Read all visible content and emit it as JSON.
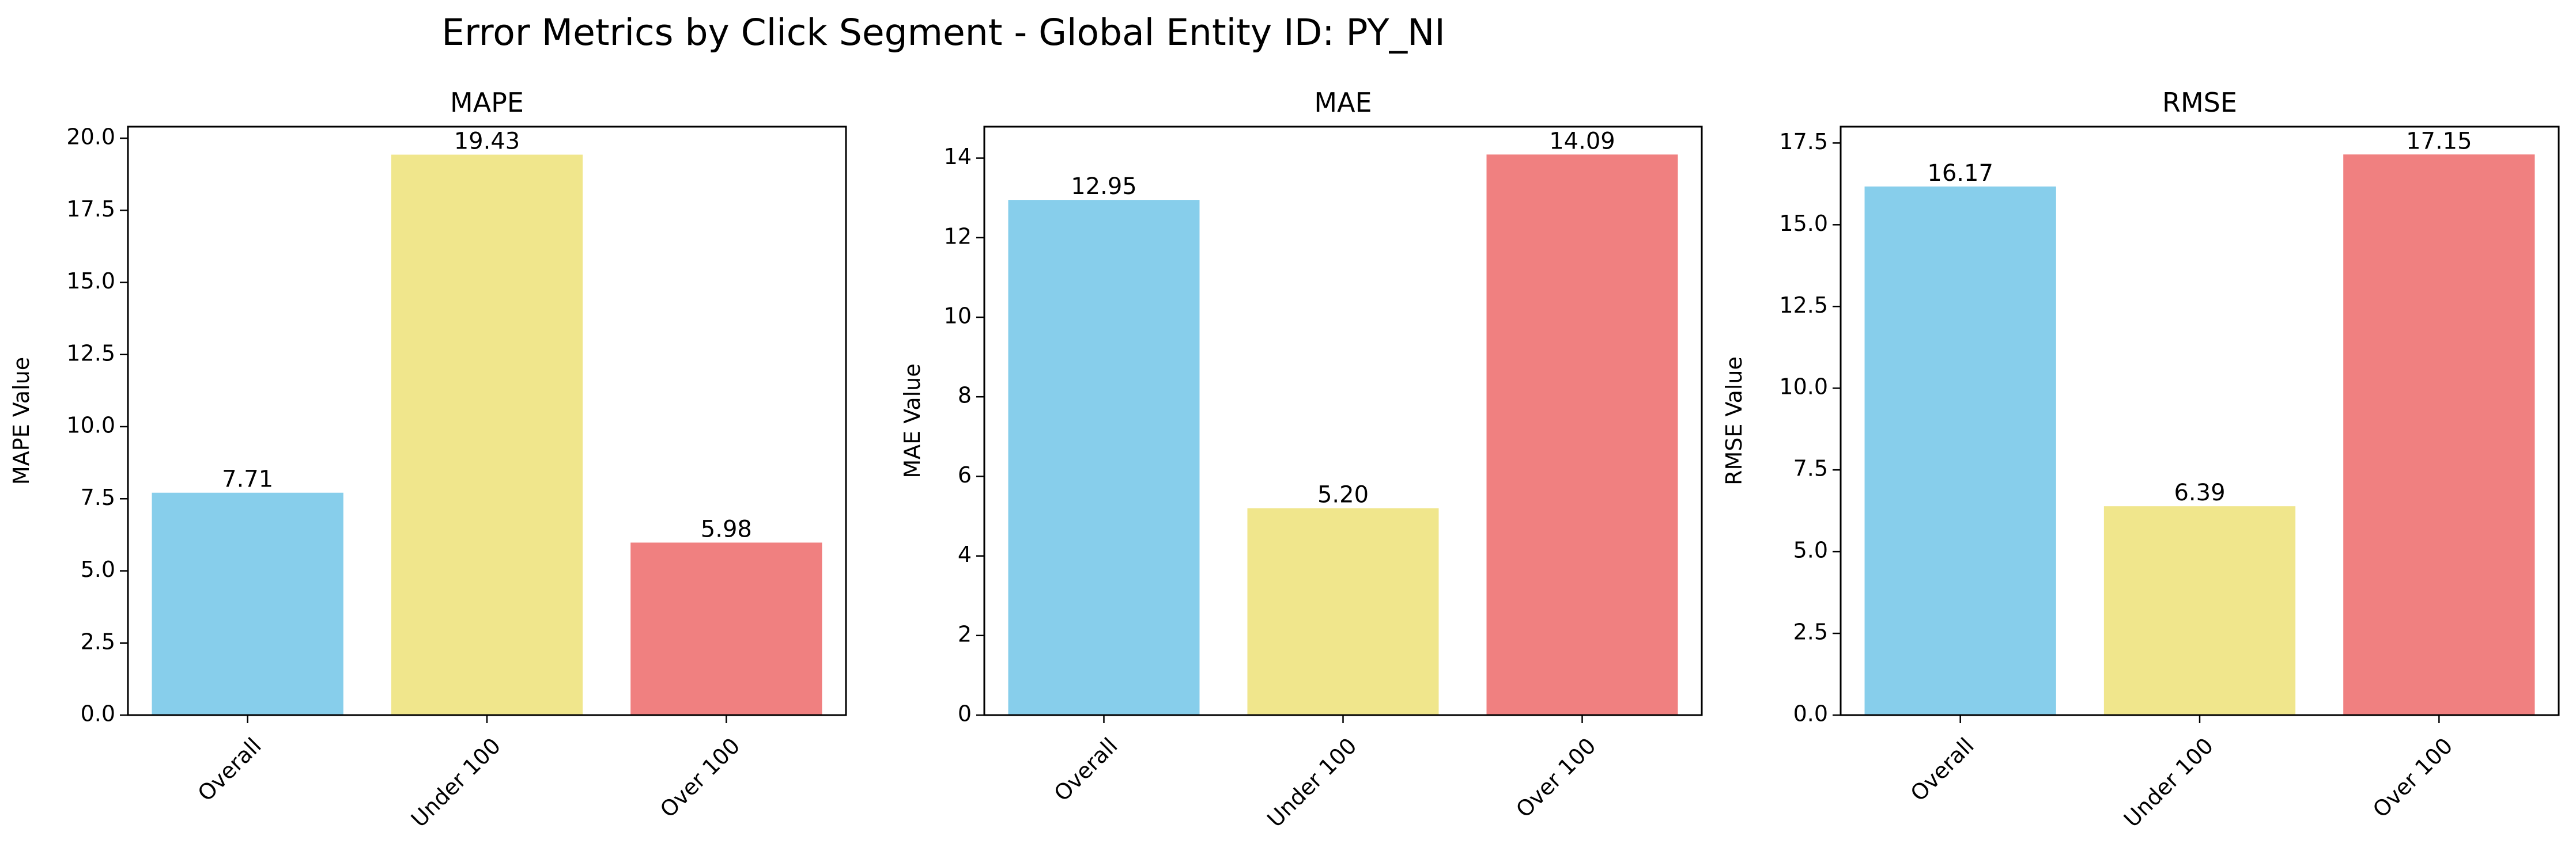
{
  "figure": {
    "suptitle": "Error Metrics by Click Segment - Global Entity ID: PY_NI"
  },
  "colors": {
    "overall": "#87ceeb",
    "under_100": "#f0e68c",
    "over_100": "#f08080"
  },
  "chart_data": [
    {
      "type": "bar",
      "title": "MAPE",
      "xlabel": "",
      "ylabel": "MAPE Value",
      "categories": [
        "Overall",
        "Under 100",
        "Over 100"
      ],
      "values": [
        7.71,
        19.43,
        5.98
      ],
      "value_labels": [
        "7.71",
        "19.43",
        "5.98"
      ],
      "ylim": [
        0,
        20.4
      ],
      "yticks": [
        0,
        2.5,
        5,
        7.5,
        10,
        12.5,
        15,
        17.5,
        20
      ],
      "ytick_labels": [
        "0.0",
        "2.5",
        "5.0",
        "7.5",
        "10.0",
        "12.5",
        "15.0",
        "17.5",
        "20.0"
      ],
      "grid": false,
      "legend": "none"
    },
    {
      "type": "bar",
      "title": "MAE",
      "xlabel": "",
      "ylabel": "MAE Value",
      "categories": [
        "Overall",
        "Under 100",
        "Over 100"
      ],
      "values": [
        12.95,
        5.2,
        14.09
      ],
      "value_labels": [
        "12.95",
        "5.20",
        "14.09"
      ],
      "ylim": [
        0,
        14.79
      ],
      "yticks": [
        0,
        2,
        4,
        6,
        8,
        10,
        12,
        14
      ],
      "ytick_labels": [
        "0",
        "2",
        "4",
        "6",
        "8",
        "10",
        "12",
        "14"
      ],
      "grid": false,
      "legend": "none"
    },
    {
      "type": "bar",
      "title": "RMSE",
      "xlabel": "",
      "ylabel": "RMSE Value",
      "categories": [
        "Overall",
        "Under 100",
        "Over 100"
      ],
      "values": [
        16.17,
        6.39,
        17.15
      ],
      "value_labels": [
        "16.17",
        "6.39",
        "17.15"
      ],
      "ylim": [
        0,
        18.0
      ],
      "yticks": [
        0,
        2.5,
        5,
        7.5,
        10,
        12.5,
        15,
        17.5
      ],
      "ytick_labels": [
        "0.0",
        "2.5",
        "5.0",
        "7.5",
        "10.0",
        "12.5",
        "15.0",
        "17.5"
      ],
      "grid": false,
      "legend": "none"
    }
  ]
}
